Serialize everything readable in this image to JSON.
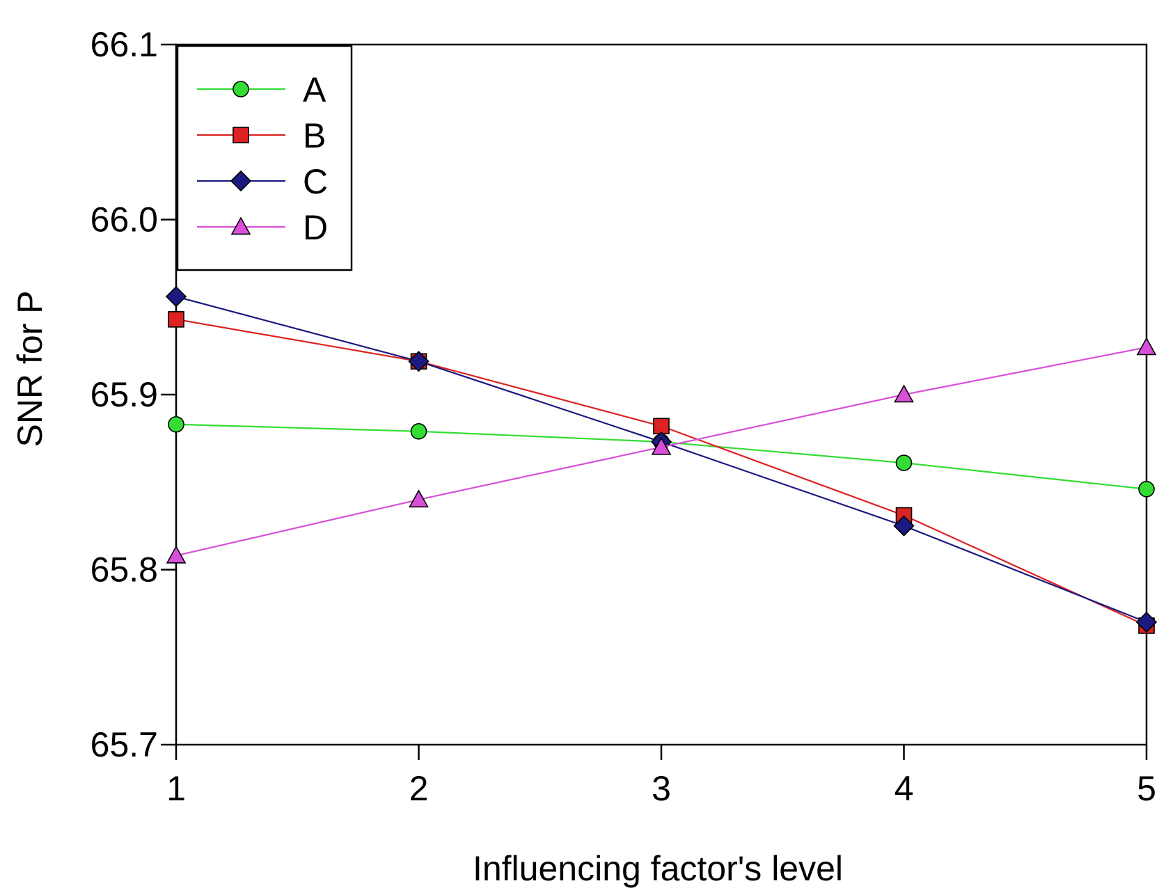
{
  "chart_data": {
    "type": "line",
    "title": "",
    "xlabel": "Influencing factor's level",
    "ylabel": "SNR for P",
    "x": [
      1,
      2,
      3,
      4,
      5
    ],
    "xlim": [
      1,
      5
    ],
    "ylim": [
      65.7,
      66.1
    ],
    "x_ticks": [
      1,
      2,
      3,
      4,
      5
    ],
    "x_tick_labels": [
      "1",
      "2",
      "3",
      "4",
      "5"
    ],
    "y_ticks": [
      65.7,
      65.8,
      65.9,
      66.0,
      66.1
    ],
    "y_tick_labels": [
      "65.7",
      "65.8",
      "65.9",
      "66.0",
      "66.1"
    ],
    "grid": false,
    "legend_position": "top-left",
    "series": [
      {
        "name": "A",
        "color": "#33dd33",
        "marker": "circle",
        "values": [
          65.883,
          65.879,
          65.873,
          65.861,
          65.846
        ]
      },
      {
        "name": "B",
        "color": "#dd2222",
        "marker": "square",
        "values": [
          65.943,
          65.919,
          65.882,
          65.831,
          65.768
        ]
      },
      {
        "name": "C",
        "color": "#1a1a80",
        "marker": "diamond",
        "values": [
          65.956,
          65.919,
          65.873,
          65.825,
          65.77
        ]
      },
      {
        "name": "D",
        "color": "#d94fd9",
        "marker": "triangle",
        "values": [
          65.808,
          65.84,
          65.87,
          65.9,
          65.927
        ]
      }
    ]
  }
}
